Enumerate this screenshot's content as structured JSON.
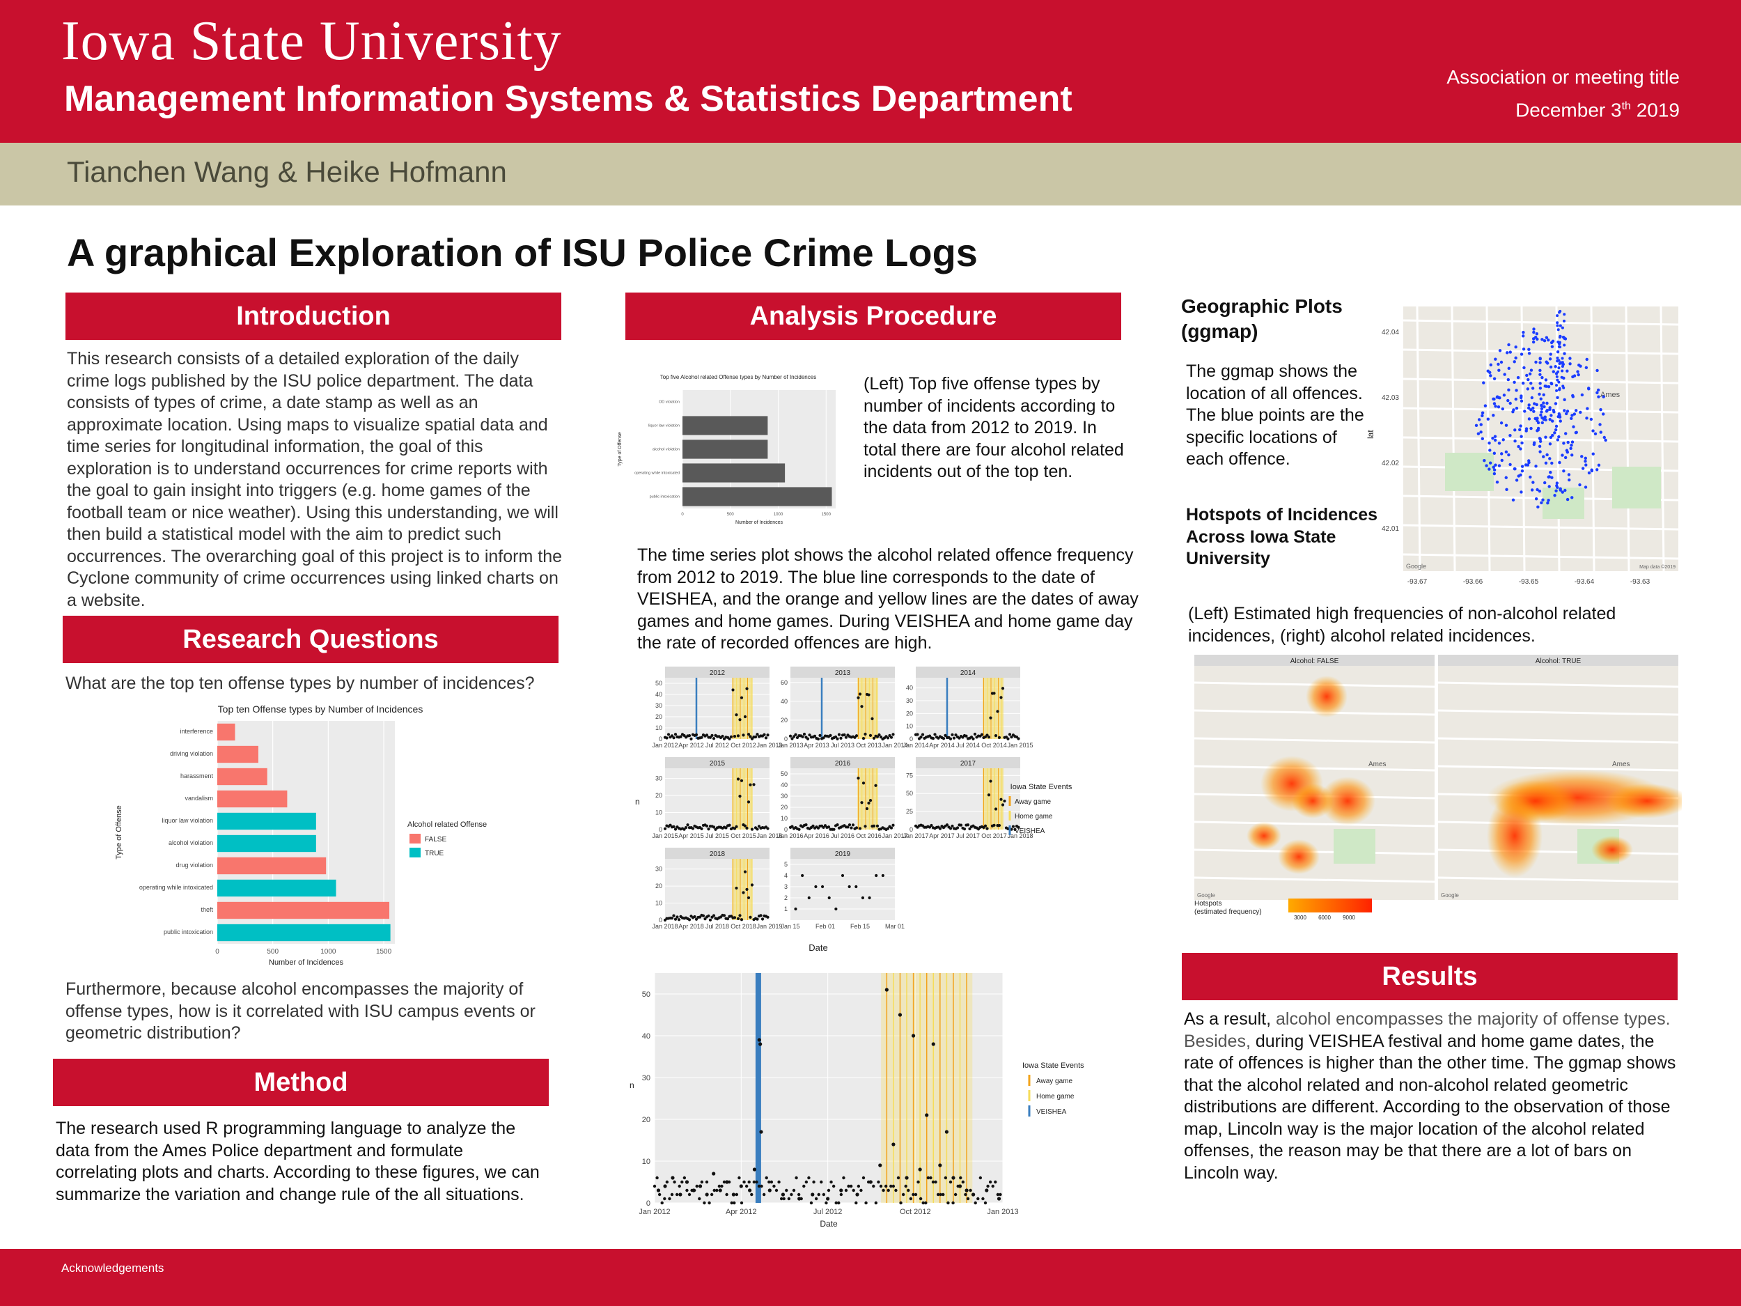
{
  "header": {
    "university": "Iowa State University",
    "department": "Management Information Systems & Statistics Department",
    "association": "Association or meeting title",
    "date_prefix": "December 3",
    "date_sup": "th",
    "date_suffix": " 2019"
  },
  "authors": "Tianchen Wang & Heike Hofmann",
  "title": "A graphical Exploration of ISU Police Crime Logs",
  "introduction": {
    "heading": "Introduction",
    "text": "This research consists of a detailed exploration of the daily crime logs published by the ISU police department. The data consists of types of crime, a date stamp as well as an approximate location. Using maps to visualize spatial data and time series for longitudinal information, the goal of this exploration is to understand occurrences for crime reports with the goal to gain insight into triggers (e.g. home games of the football team or nice weather). Using this understanding, we will then build a statistical model with the aim to predict such occurrences. The overarching goal of this project is to inform the Cyclone community of crime occurrences using linked charts on a website."
  },
  "research": {
    "heading": "Research Questions",
    "question": "What are the top ten offense types by number of incidences?",
    "followup": "Furthermore, because alcohol encompasses the majority of offense types, how is it correlated with ISU campus events or geometric distribution?"
  },
  "method": {
    "heading": "Method",
    "text": "The research used R programming language to analyze the data from the Ames Police department and formulate correlating plots and charts. According to these figures, we can summarize the variation and change rule of the all situations."
  },
  "analysis": {
    "heading": "Analysis Procedure",
    "top5_caption": "(Left) Top five offense types by number of incidents according to the data from 2012 to 2019. In total there are four alcohol related incidents out of the top ten.",
    "timeseries_text": "The time series plot shows the alcohol related offence frequency from 2012 to 2019. The blue line corresponds to the date of VEISHEA, and the orange and yellow lines are the dates of away games and home games. During VEISHEA and home game day the rate of recorded offences are high."
  },
  "geo": {
    "heading": "Geographic Plots (ggmap)",
    "text": "The ggmap shows the location of all offences. The blue points are the specific locations of each offence.",
    "hotspot_title": "Hotspots of Incidences Across Iowa State University",
    "hotspot_caption": "(Left) Estimated high frequencies of non-alcohol related incidences, (right) alcohol related incidences.",
    "map_labels": {
      "ames": "Ames",
      "lat": "lat",
      "google": "Google",
      "map_data": "Map data ©2019"
    },
    "lat_ticks": [
      "42.04",
      "42.03",
      "42.02",
      "42.01"
    ],
    "lon_ticks": [
      "-93.67",
      "-93.66",
      "-93.65",
      "-93.64",
      "-93.63"
    ],
    "facet_false": "Alcohol: FALSE",
    "facet_true": "Alcohol: TRUE",
    "hotspot_legend_title": "Hotspots\n(estimated frequency)",
    "hotspot_legend_ticks": [
      "3000",
      "6000",
      "9000"
    ]
  },
  "results": {
    "heading": "Results",
    "highlight_1": "alcohol encompasses the majority of offense types.",
    "highlight_2": "Besides,",
    "prefix": "As a result, ",
    "rest": " during VEISHEA festival and home game dates, the rate of offences is higher than the other time. The ggmap shows that the alcohol related and non-alcohol related geometric distributions are different. According to the observation of those map, Lincoln way is the major location of the alcohol related offenses, the reason may be that there are a lot of bars on Lincoln way.",
    "highlight_color": "#555555"
  },
  "footer": {
    "acknowledgements": "Acknowledgements"
  },
  "colors": {
    "brand_red": "#c8102e",
    "tan": "#cac6a6",
    "false": "#f8766d",
    "true": "#00bfc4",
    "bar_gray": "#595959",
    "veishea": "#3a7ebf",
    "away": "#f2a31b",
    "home": "#f6dc5a"
  },
  "chart_data": [
    {
      "type": "bar",
      "title": "Top ten Offense types by Number of Incidences",
      "xlabel": "Number of Incidences",
      "ylabel": "Type of Offense",
      "legend_title": "Alcohol related Offense",
      "legend": [
        "FALSE",
        "TRUE"
      ],
      "xlim": [
        0,
        1600
      ],
      "xticks": [
        "0",
        "500",
        "1000",
        "1500"
      ],
      "categories": [
        "interference",
        "driving violation",
        "harassment",
        "vandalism",
        "liquor law violation",
        "alcohol violation",
        "drug violation",
        "operating while intoxicated",
        "theft",
        "public intoxication"
      ],
      "values": [
        160,
        370,
        450,
        630,
        890,
        890,
        980,
        1070,
        1550,
        1560
      ],
      "alcohol": [
        false,
        false,
        false,
        false,
        true,
        true,
        false,
        true,
        false,
        true
      ]
    },
    {
      "type": "bar",
      "title": "Top five Alcohol related Offense types by Number of Incidences",
      "xlabel": "Number of Incidences",
      "ylabel": "Type of Offense",
      "xticks": [
        "0",
        "500",
        "1000",
        "1500"
      ],
      "xlim": [
        0,
        1600
      ],
      "categories": [
        "OD violation",
        "liquor law violation",
        "alcohol violation",
        "operating while intoxicated",
        "public intoxication"
      ],
      "values": [
        0,
        890,
        890,
        1070,
        1560
      ]
    },
    {
      "type": "scatter",
      "title": "2012",
      "xlabel": "Date",
      "ylabel": "n",
      "xticks": [
        "Jan 2012",
        "Apr 2012",
        "Jul 2012",
        "Oct 2012",
        "Jan 2013"
      ],
      "yticks": [
        "0",
        "10",
        "20",
        "30",
        "40",
        "50"
      ],
      "ylim": [
        0,
        55
      ],
      "legend_title": "Iowa State Events",
      "legend": [
        "Away game",
        "Home game",
        "VEISHEA"
      ],
      "veishea": "2012-04-19",
      "points": [
        [
          "2012-01-05",
          3
        ],
        [
          "2012-01-12",
          4
        ],
        [
          "2012-01-20",
          6
        ],
        [
          "2012-01-28",
          2
        ],
        [
          "2012-02-04",
          5
        ],
        [
          "2012-02-11",
          3
        ],
        [
          "2012-02-18",
          4
        ],
        [
          "2012-02-25",
          2
        ],
        [
          "2012-03-03",
          7
        ],
        [
          "2012-03-10",
          3
        ],
        [
          "2012-03-17",
          5
        ],
        [
          "2012-03-24",
          2
        ],
        [
          "2012-04-01",
          4
        ],
        [
          "2012-04-10",
          3
        ],
        [
          "2012-04-20",
          39
        ],
        [
          "2012-04-21",
          38
        ],
        [
          "2012-04-22",
          17
        ],
        [
          "2012-04-15",
          8
        ],
        [
          "2012-05-01",
          3
        ],
        [
          "2012-05-15",
          2
        ],
        [
          "2012-06-01",
          1
        ],
        [
          "2012-06-15",
          2
        ],
        [
          "2012-07-01",
          1
        ],
        [
          "2012-07-15",
          3
        ],
        [
          "2012-08-01",
          2
        ],
        [
          "2012-08-15",
          5
        ],
        [
          "2012-08-25",
          9
        ],
        [
          "2012-09-01",
          51
        ],
        [
          "2012-09-08",
          14
        ],
        [
          "2012-09-15",
          45
        ],
        [
          "2012-09-22",
          6
        ],
        [
          "2012-09-29",
          40
        ],
        [
          "2012-10-06",
          8
        ],
        [
          "2012-10-13",
          21
        ],
        [
          "2012-10-20",
          38
        ],
        [
          "2012-10-27",
          9
        ],
        [
          "2012-11-03",
          17
        ],
        [
          "2012-11-10",
          6
        ],
        [
          "2012-11-17",
          4
        ],
        [
          "2012-11-24",
          3
        ],
        [
          "2012-12-01",
          2
        ],
        [
          "2012-12-15",
          3
        ],
        [
          "2012-12-28",
          1
        ]
      ]
    }
  ]
}
